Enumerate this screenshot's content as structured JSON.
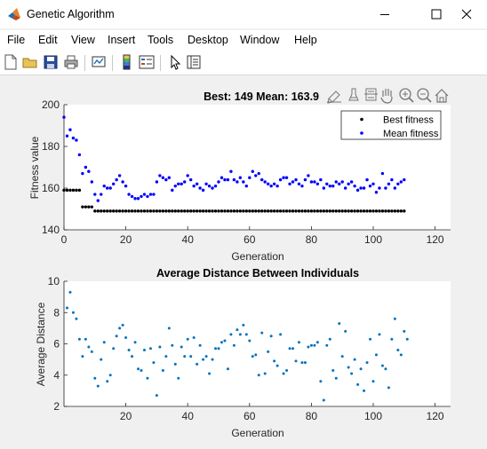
{
  "window": {
    "title": "Genetic Algorithm",
    "controls": [
      "minimize",
      "maximize",
      "close"
    ]
  },
  "menu": {
    "items": [
      "File",
      "Edit",
      "View",
      "Insert",
      "Tools",
      "Desktop",
      "Window",
      "Help"
    ]
  },
  "toolbar": {
    "buttons": [
      "new-figure-icon",
      "open-file-icon",
      "save-icon",
      "print-icon",
      "link-plot-icon",
      "colorbar-icon",
      "legend-icon",
      "pointer-icon",
      "property-editor-icon"
    ]
  },
  "axes_toolbar": {
    "buttons": [
      "export-icon",
      "brush-icon",
      "datatip-icon",
      "pan-icon",
      "zoom-in-icon",
      "zoom-out-icon",
      "home-icon"
    ]
  },
  "chart_data": [
    {
      "type": "scatter",
      "title": "Best: 149 Mean: 163.9",
      "xlabel": "Generation",
      "ylabel": "Fitness value",
      "xlim": [
        0,
        125
      ],
      "ylim": [
        140,
        200
      ],
      "xticks": [
        0,
        20,
        40,
        60,
        80,
        100,
        120
      ],
      "yticks": [
        140,
        160,
        180,
        200
      ],
      "grid": false,
      "legend_position": "top-right",
      "series": [
        {
          "name": "Best fitness",
          "color": "#000000",
          "x_start": 0,
          "values": [
            159,
            159,
            159,
            159,
            159,
            159,
            151,
            151,
            151,
            151,
            149,
            149,
            149,
            149,
            149,
            149,
            149,
            149,
            149,
            149,
            149,
            149,
            149,
            149,
            149,
            149,
            149,
            149,
            149,
            149,
            149,
            149,
            149,
            149,
            149,
            149,
            149,
            149,
            149,
            149,
            149,
            149,
            149,
            149,
            149,
            149,
            149,
            149,
            149,
            149,
            149,
            149,
            149,
            149,
            149,
            149,
            149,
            149,
            149,
            149,
            149,
            149,
            149,
            149,
            149,
            149,
            149,
            149,
            149,
            149,
            149,
            149,
            149,
            149,
            149,
            149,
            149,
            149,
            149,
            149,
            149,
            149,
            149,
            149,
            149,
            149,
            149,
            149,
            149,
            149,
            149,
            149,
            149,
            149,
            149,
            149,
            149,
            149,
            149,
            149,
            149,
            149,
            149,
            149,
            149,
            149,
            149,
            149,
            149,
            149,
            149
          ]
        },
        {
          "name": "Mean fitness",
          "color": "#0000ff",
          "x_start": 0,
          "values": [
            194,
            185,
            188,
            184,
            183,
            176,
            167,
            170,
            168,
            163,
            157,
            154,
            157,
            161,
            160,
            160,
            162,
            164,
            166,
            163,
            161,
            157,
            156,
            155,
            155,
            156,
            157,
            156,
            157,
            157,
            163,
            166,
            165,
            164,
            165,
            159,
            161,
            162,
            162,
            163,
            166,
            164,
            161,
            162,
            160,
            159,
            162,
            161,
            160,
            161,
            163,
            165,
            164,
            164,
            168,
            164,
            163,
            165,
            163,
            161,
            165,
            168,
            166,
            167,
            164,
            163,
            162,
            161,
            162,
            161,
            164,
            165,
            165,
            162,
            163,
            164,
            162,
            161,
            164,
            166,
            163,
            163,
            162,
            164,
            160,
            162,
            161,
            161,
            163,
            162,
            163,
            160,
            162,
            163,
            161,
            159,
            160,
            160,
            164,
            161,
            162,
            158,
            160,
            167,
            160,
            162,
            164,
            160,
            162,
            163,
            164
          ]
        }
      ]
    },
    {
      "type": "scatter",
      "title": "Average Distance Between Individuals",
      "xlabel": "Generation",
      "ylabel": "Average Distance",
      "xlim": [
        0,
        125
      ],
      "ylim": [
        2,
        10
      ],
      "xticks": [
        20,
        40,
        60,
        80,
        100,
        120
      ],
      "yticks": [
        2,
        4,
        6,
        8,
        10
      ],
      "grid": false,
      "series": [
        {
          "color": "#0072bd",
          "x_start": 1,
          "values": [
            8.3,
            9.3,
            8.0,
            7.6,
            6.3,
            5.2,
            6.3,
            5.8,
            5.5,
            3.8,
            3.3,
            5.0,
            6.1,
            3.6,
            4.0,
            5.7,
            6.5,
            7.0,
            7.2,
            6.4,
            5.6,
            5.2,
            6.1,
            4.4,
            4.3,
            5.6,
            3.8,
            5.7,
            4.8,
            2.7,
            5.8,
            4.3,
            5.2,
            7.0,
            5.9,
            4.7,
            3.8,
            5.8,
            5.2,
            6.3,
            5.2,
            6.4,
            4.7,
            5.9,
            5.0,
            5.2,
            4.1,
            5.0,
            5.7,
            5.7,
            6.1,
            6.2,
            4.4,
            6.6,
            5.9,
            6.9,
            6.6,
            7.2,
            6.6,
            6.2,
            5.2,
            5.3,
            4.0,
            6.7,
            4.1,
            5.5,
            6.5,
            4.9,
            4.6,
            6.6,
            4.1,
            4.3,
            5.7,
            5.7,
            4.9,
            6.1,
            4.8,
            4.8,
            5.8,
            5.9,
            5.9,
            6.1,
            3.6,
            2.4,
            5.9,
            6.3,
            4.3,
            3.8,
            7.3,
            5.2,
            6.8,
            4.5,
            4.1,
            5.0,
            3.4,
            4.4,
            3.0,
            4.8,
            6.3,
            3.6,
            5.3,
            6.6,
            4.6,
            4.4,
            3.2,
            6.3,
            7.6,
            5.6,
            5.3,
            6.8,
            6.3
          ]
        }
      ]
    }
  ]
}
